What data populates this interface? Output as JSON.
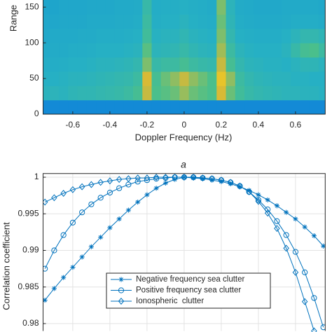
{
  "chart_data": [
    {
      "type": "heatmap",
      "xlabel": "Doppler Frequency (Hz)",
      "ylabel": "Range",
      "caption": "a",
      "xlim": [
        -0.76,
        0.76
      ],
      "xticks": [
        -0.6,
        -0.4,
        -0.2,
        0,
        0.2,
        0.4,
        0.6
      ],
      "ylim": [
        0,
        160
      ],
      "yticks": [
        0,
        50,
        100,
        150
      ],
      "colormap": [
        "#352a87",
        "#0f5cdd",
        "#1496d4",
        "#26b0c4",
        "#4cc08a",
        "#e4b92f",
        "#f9fb0e"
      ],
      "x": [
        -0.75,
        -0.7,
        -0.65,
        -0.6,
        -0.55,
        -0.5,
        -0.45,
        -0.4,
        -0.35,
        -0.3,
        -0.25,
        -0.2,
        -0.15,
        -0.1,
        -0.05,
        0,
        0.05,
        0.1,
        0.15,
        0.2,
        0.25,
        0.3,
        0.35,
        0.4,
        0.45,
        0.5,
        0.55,
        0.6,
        0.65,
        0.7,
        0.75
      ],
      "y": [
        10,
        30,
        50,
        70,
        90,
        110,
        130,
        150
      ],
      "z": [
        [
          0.3,
          0.3,
          0.3,
          0.3,
          0.3,
          0.3,
          0.3,
          0.3,
          0.3,
          0.3,
          0.3,
          0.3,
          0.3,
          0.3,
          0.3,
          0.3,
          0.3,
          0.3,
          0.3,
          0.3,
          0.3,
          0.3,
          0.3,
          0.3,
          0.3,
          0.3,
          0.3,
          0.3,
          0.3,
          0.3,
          0.3
        ],
        [
          0.52,
          0.53,
          0.52,
          0.54,
          0.55,
          0.55,
          0.56,
          0.57,
          0.58,
          0.6,
          0.64,
          0.8,
          0.66,
          0.68,
          0.7,
          0.75,
          0.7,
          0.68,
          0.66,
          0.82,
          0.7,
          0.62,
          0.58,
          0.56,
          0.55,
          0.54,
          0.53,
          0.53,
          0.52,
          0.52,
          0.51
        ],
        [
          0.5,
          0.5,
          0.51,
          0.52,
          0.52,
          0.53,
          0.54,
          0.55,
          0.56,
          0.57,
          0.6,
          0.82,
          0.64,
          0.7,
          0.74,
          0.8,
          0.74,
          0.7,
          0.66,
          0.86,
          0.74,
          0.6,
          0.56,
          0.54,
          0.53,
          0.52,
          0.52,
          0.51,
          0.51,
          0.5,
          0.5
        ],
        [
          0.48,
          0.48,
          0.49,
          0.5,
          0.5,
          0.51,
          0.52,
          0.52,
          0.53,
          0.54,
          0.56,
          0.72,
          0.58,
          0.6,
          0.6,
          0.64,
          0.6,
          0.58,
          0.57,
          0.8,
          0.64,
          0.56,
          0.53,
          0.52,
          0.51,
          0.51,
          0.5,
          0.52,
          0.54,
          0.54,
          0.52
        ],
        [
          0.46,
          0.47,
          0.47,
          0.48,
          0.48,
          0.49,
          0.5,
          0.5,
          0.5,
          0.51,
          0.52,
          0.68,
          0.53,
          0.54,
          0.55,
          0.58,
          0.55,
          0.53,
          0.52,
          0.76,
          0.6,
          0.53,
          0.51,
          0.5,
          0.5,
          0.5,
          0.52,
          0.58,
          0.64,
          0.66,
          0.6
        ],
        [
          0.45,
          0.46,
          0.46,
          0.46,
          0.47,
          0.47,
          0.48,
          0.48,
          0.48,
          0.49,
          0.5,
          0.62,
          0.51,
          0.52,
          0.52,
          0.55,
          0.52,
          0.51,
          0.5,
          0.72,
          0.56,
          0.5,
          0.49,
          0.48,
          0.48,
          0.48,
          0.5,
          0.53,
          0.56,
          0.56,
          0.54
        ],
        [
          0.44,
          0.44,
          0.45,
          0.45,
          0.45,
          0.46,
          0.46,
          0.46,
          0.47,
          0.47,
          0.48,
          0.6,
          0.49,
          0.5,
          0.5,
          0.52,
          0.5,
          0.49,
          0.48,
          0.7,
          0.54,
          0.48,
          0.47,
          0.46,
          0.46,
          0.46,
          0.47,
          0.48,
          0.48,
          0.48,
          0.47
        ],
        [
          0.43,
          0.43,
          0.44,
          0.44,
          0.44,
          0.45,
          0.45,
          0.45,
          0.46,
          0.46,
          0.47,
          0.58,
          0.48,
          0.49,
          0.49,
          0.5,
          0.49,
          0.48,
          0.47,
          0.72,
          0.53,
          0.47,
          0.46,
          0.45,
          0.45,
          0.45,
          0.46,
          0.46,
          0.46,
          0.46,
          0.45
        ]
      ]
    },
    {
      "type": "line",
      "ylabel": "Correlation coefficient",
      "grid": true,
      "legend": "lower center",
      "xlim": [
        -0.76,
        0.76
      ],
      "xticks": [
        -0.6,
        -0.4,
        -0.2,
        0,
        0.2,
        0.4,
        0.6
      ],
      "ylim": [
        0.979,
        1.0005
      ],
      "yticks": [
        0.98,
        0.985,
        0.99,
        0.995,
        1
      ],
      "x": [
        -0.75,
        -0.7,
        -0.65,
        -0.6,
        -0.55,
        -0.5,
        -0.45,
        -0.4,
        -0.35,
        -0.3,
        -0.25,
        -0.2,
        -0.15,
        -0.1,
        -0.05,
        0,
        0.05,
        0.1,
        0.15,
        0.2,
        0.25,
        0.3,
        0.35,
        0.4,
        0.45,
        0.5,
        0.55,
        0.6,
        0.65,
        0.7,
        0.75
      ],
      "series": [
        {
          "name": "Negative frequency sea clutter",
          "color": "#0072bd",
          "marker": "star",
          "values": [
            0.9832,
            0.9848,
            0.9863,
            0.9877,
            0.9891,
            0.9905,
            0.9918,
            0.9931,
            0.9943,
            0.9955,
            0.9966,
            0.9976,
            0.9985,
            0.9992,
            0.9997,
            1.0,
            0.9999,
            0.9998,
            0.9996,
            0.9994,
            0.9991,
            0.9987,
            0.9982,
            0.9976,
            0.9969,
            0.9961,
            0.9952,
            0.9943,
            0.9932,
            0.992,
            0.9906
          ]
        },
        {
          "name": "Positive frequency sea clutter",
          "color": "#0072bd",
          "marker": "circle",
          "values": [
            0.9875,
            0.99,
            0.9921,
            0.9938,
            0.9952,
            0.9963,
            0.9972,
            0.9979,
            0.9985,
            0.999,
            0.9994,
            0.9996,
            0.9998,
            0.9999,
            1.0,
            1.0,
            1.0,
            0.9999,
            0.9998,
            0.9996,
            0.9993,
            0.9988,
            0.998,
            0.9969,
            0.9956,
            0.994,
            0.9921,
            0.9898,
            0.987,
            0.9835,
            0.9795
          ]
        },
        {
          "name": "Ionospheric  clutter",
          "color": "#0072bd",
          "marker": "diamond",
          "values": [
            0.9966,
            0.9972,
            0.9978,
            0.9983,
            0.9987,
            0.999,
            0.9993,
            0.9995,
            0.9997,
            0.9998,
            0.9999,
            0.9999,
            1.0,
            1.0,
            1.0,
            1.0,
            1.0,
            0.9999,
            0.9998,
            0.9996,
            0.9993,
            0.9988,
            0.998,
            0.9967,
            0.9951,
            0.993,
            0.9903,
            0.987,
            0.983,
            0.979,
            null
          ]
        }
      ]
    }
  ]
}
